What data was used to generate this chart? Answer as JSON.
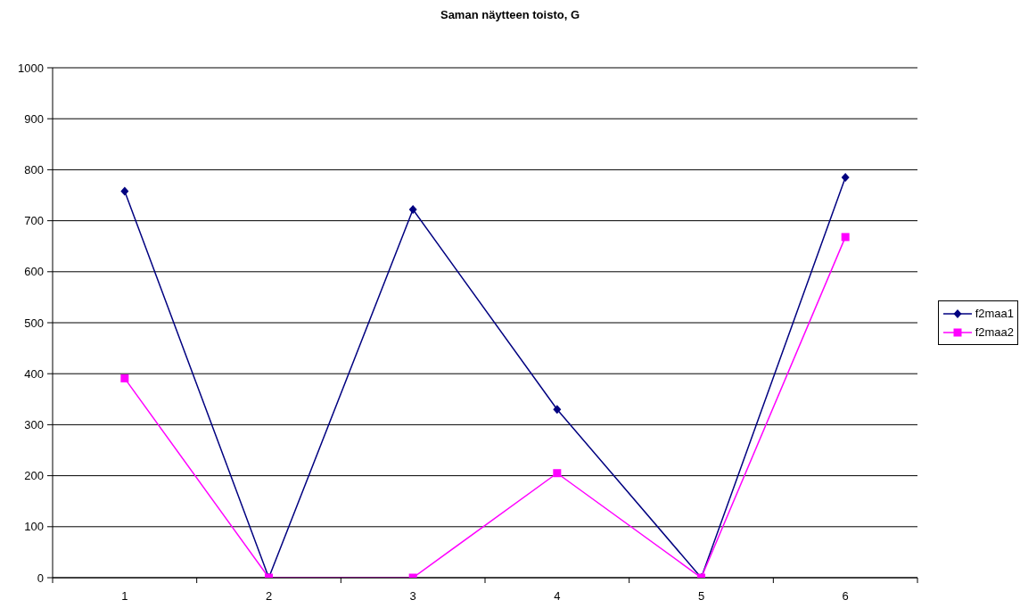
{
  "chart_data": {
    "type": "line",
    "title": "Saman näytteen toisto, G",
    "categories": [
      "1",
      "2",
      "3",
      "4",
      "5",
      "6"
    ],
    "series": [
      {
        "name": "f2maa1",
        "color": "#000080",
        "marker": "diamond",
        "values": [
          758,
          0,
          722,
          330,
          0,
          785
        ]
      },
      {
        "name": "f2maa2",
        "color": "#ff00ff",
        "marker": "square",
        "values": [
          391,
          0,
          0,
          205,
          0,
          668
        ]
      }
    ],
    "ylim": [
      0,
      1000
    ],
    "yticks": [
      0,
      100,
      200,
      300,
      400,
      500,
      600,
      700,
      800,
      900,
      1000
    ],
    "grid": "y",
    "legend": "right"
  }
}
